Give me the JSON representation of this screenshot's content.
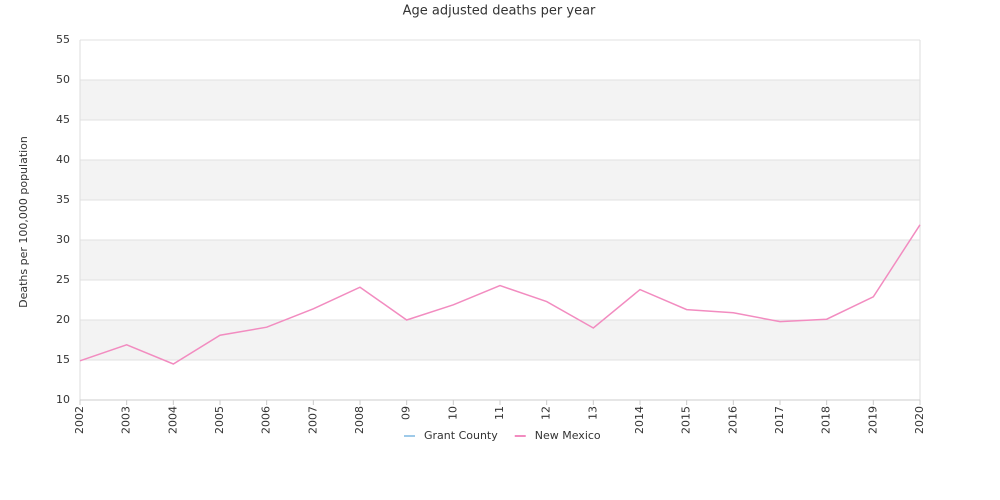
{
  "chart_data": {
    "type": "line",
    "title": "Age adjusted deaths per year",
    "y_label": "Deaths per 100,000 population",
    "categories": [
      "2002",
      "2003",
      "2004",
      "2005",
      "2006",
      "2007",
      "2008",
      "09",
      "10",
      "11",
      "12",
      "13",
      "2014",
      "2015",
      "2016",
      "2017",
      "2018",
      "2019",
      "2020"
    ],
    "series": [
      {
        "name": "Grant County",
        "color": "#9ecae9",
        "values": [
          null,
          null,
          null,
          null,
          null,
          null,
          null,
          null,
          null,
          null,
          null,
          null,
          null,
          null,
          null,
          null,
          null,
          null,
          null
        ]
      },
      {
        "name": "New Mexico",
        "color": "#f28cc0",
        "values": [
          14.9,
          16.9,
          14.5,
          18.1,
          19.1,
          21.4,
          24.1,
          20.0,
          21.9,
          24.3,
          22.3,
          19.0,
          23.8,
          21.3,
          20.9,
          19.8,
          20.1,
          22.9,
          31.9
        ]
      }
    ],
    "ylim": [
      10,
      55
    ],
    "yticks": [
      10,
      15,
      20,
      25,
      30,
      35,
      40,
      45,
      50,
      55
    ],
    "grid": true,
    "legend": "bottom"
  }
}
